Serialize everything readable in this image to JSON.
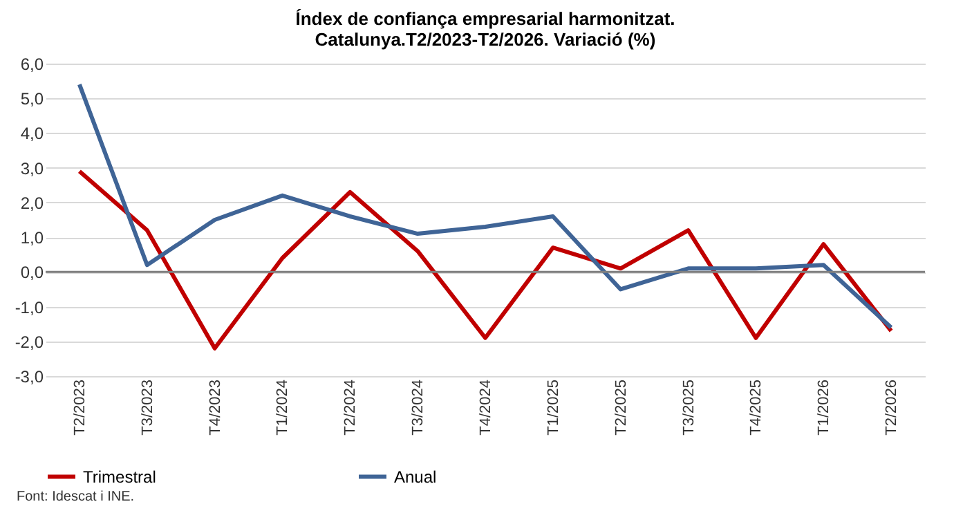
{
  "chart_data": {
    "type": "line",
    "title": "Índex de confiança empresarial harmonitzat.\nCatalunya.T2/2023-T2/2026. Variació (%)",
    "categories": [
      "T2/2023",
      "T3/2023",
      "T4/2023",
      "T1/2024",
      "T2/2024",
      "T3/2024",
      "T4/2024",
      "T1/2025",
      "T2/2025",
      "T3/2025",
      "T4/2025",
      "T1/2026",
      "T2/2026"
    ],
    "series": [
      {
        "name": "Trimestral",
        "color": "#c00000",
        "values": [
          2.9,
          1.2,
          -2.2,
          0.4,
          2.3,
          0.6,
          -1.9,
          0.7,
          0.1,
          1.2,
          -1.9,
          0.8,
          -1.7
        ]
      },
      {
        "name": "Anual",
        "color": "#3f6496",
        "values": [
          5.4,
          0.2,
          1.5,
          2.2,
          1.6,
          1.1,
          1.3,
          1.6,
          -0.5,
          0.1,
          0.1,
          0.2,
          -1.6
        ]
      }
    ],
    "ylim": [
      -3,
      6
    ],
    "yticks": [
      {
        "value": -3,
        "label": "-3,0"
      },
      {
        "value": -2,
        "label": "-2,0"
      },
      {
        "value": -1,
        "label": "-1,0"
      },
      {
        "value": 0,
        "label": "0,0"
      },
      {
        "value": 1,
        "label": "1,0"
      },
      {
        "value": 2,
        "label": "2,0"
      },
      {
        "value": 3,
        "label": "3,0"
      },
      {
        "value": 4,
        "label": "4,0"
      },
      {
        "value": 5,
        "label": "5,0"
      },
      {
        "value": 6,
        "label": "6,0"
      }
    ],
    "grid": "y",
    "legend": "bottom",
    "marker": "none",
    "line_style": "solid",
    "ref_lines": [
      {
        "axis": "y",
        "value": 0,
        "color": "#808080"
      }
    ],
    "annotations": [
      "Font: Idescat i INE."
    ]
  }
}
